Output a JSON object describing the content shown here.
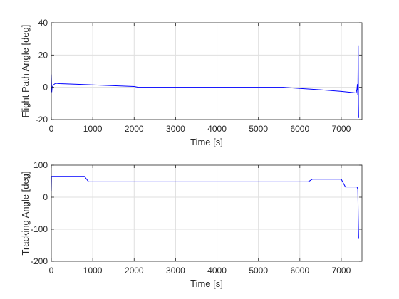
{
  "chart_data": [
    {
      "type": "line",
      "title": "",
      "xlabel": "Time [s]",
      "ylabel": "Flight Path Angle [deg]",
      "xlim": [
        0,
        7500
      ],
      "ylim": [
        -20,
        40
      ],
      "xticks": [
        0,
        1000,
        2000,
        3000,
        4000,
        5000,
        6000,
        7000
      ],
      "yticks": [
        -20,
        0,
        20,
        40
      ],
      "grid": true,
      "color": "#0000ff",
      "series": [
        {
          "x": [
            0,
            10,
            20,
            50,
            100,
            200,
            500,
            1000,
            1500,
            2000,
            2100,
            2500,
            3000,
            4000,
            5000,
            5600,
            6000,
            6500,
            7000,
            7300,
            7360,
            7380,
            7390,
            7400,
            7405,
            7410,
            7415,
            7420
          ],
          "y": [
            8,
            -3,
            0,
            1.5,
            2.5,
            2.3,
            2.0,
            1.5,
            1.0,
            0.5,
            0,
            0,
            0,
            0,
            0,
            0,
            -0.7,
            -1.5,
            -2.5,
            -3.3,
            -3.5,
            -1,
            2,
            -5,
            10,
            26,
            -10,
            -19
          ]
        }
      ]
    },
    {
      "type": "line",
      "title": "",
      "xlabel": "Time [s]",
      "ylabel": "Tracking Angle [deg]",
      "xlim": [
        0,
        7500
      ],
      "ylim": [
        -200,
        100
      ],
      "xticks": [
        0,
        1000,
        2000,
        3000,
        4000,
        5000,
        6000,
        7000
      ],
      "yticks": [
        -200,
        -100,
        0,
        100
      ],
      "grid": true,
      "color": "#0000ff",
      "series": [
        {
          "x": [
            0,
            5,
            10,
            50,
            800,
            900,
            1000,
            2000,
            3000,
            4000,
            5000,
            6000,
            6200,
            6300,
            7000,
            7100,
            7380,
            7400,
            7410,
            7420
          ],
          "y": [
            20,
            65,
            65,
            65,
            65,
            48,
            48,
            48,
            48,
            48,
            48,
            48,
            48,
            56,
            56,
            32,
            32,
            25,
            -60,
            -130
          ]
        }
      ]
    }
  ]
}
